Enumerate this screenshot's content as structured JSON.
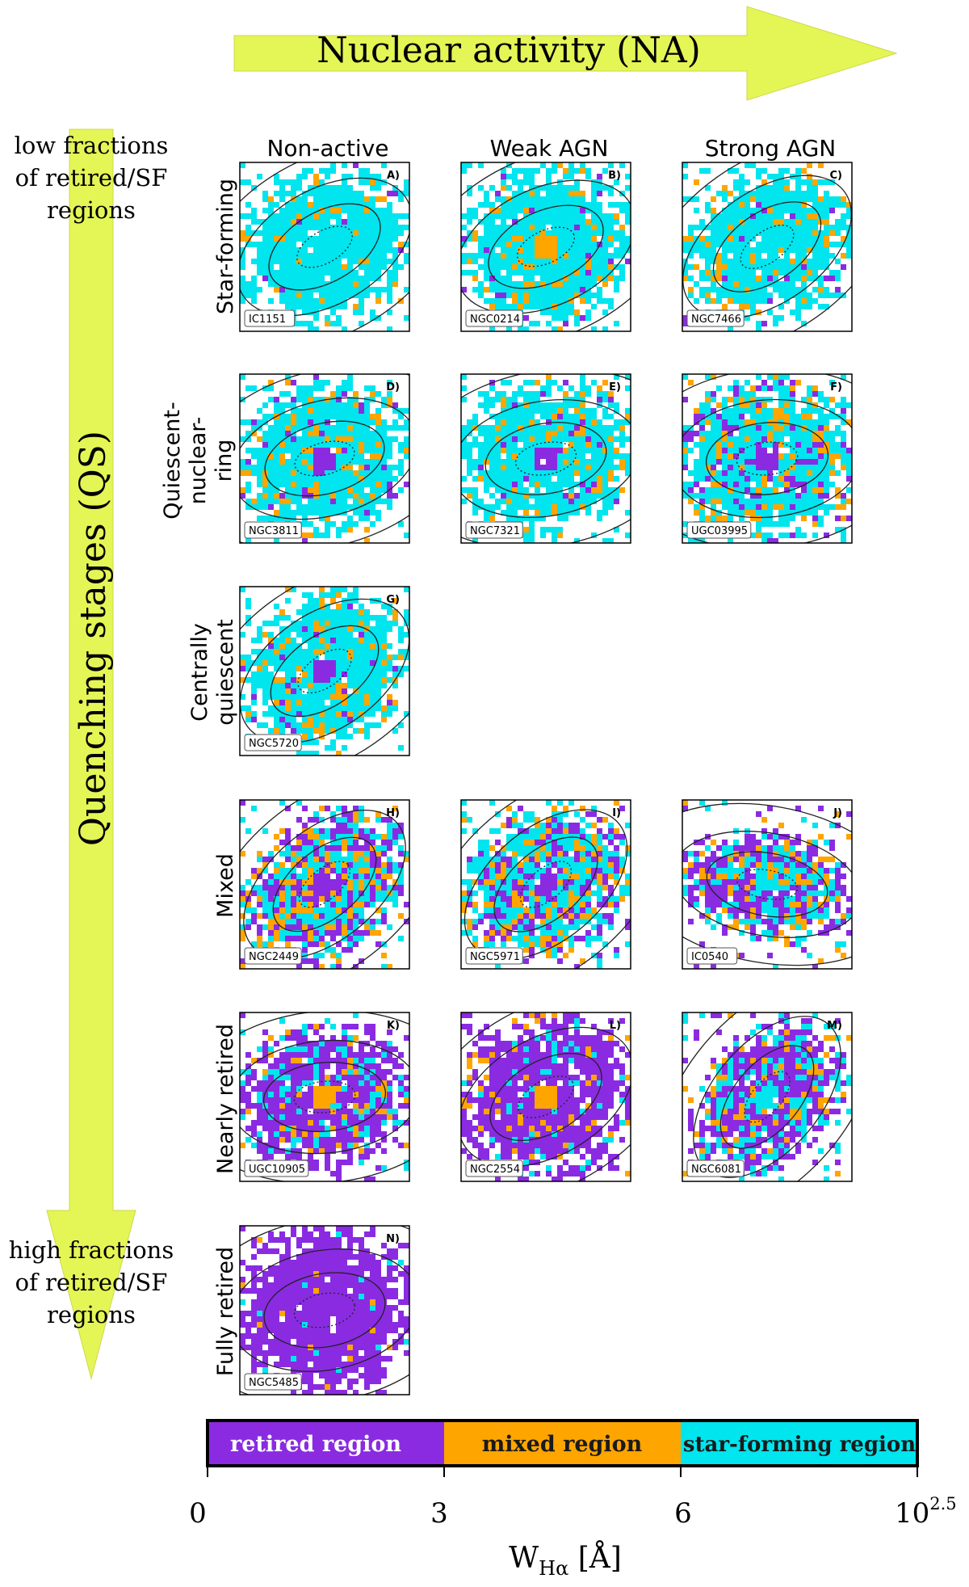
{
  "title_arrow": {
    "label": "Nuclear activity (NA)",
    "color": "#e4f556"
  },
  "vertical_arrow": {
    "label": "Quenching stages (QS)",
    "top_note": [
      "low fractions",
      "of  retired/SF",
      "regions"
    ],
    "bottom_note": [
      "high fractions",
      "of  retired/SF",
      "regions"
    ],
    "color": "#e4f556"
  },
  "columns": [
    "Non-active",
    "Weak AGN",
    "Strong AGN"
  ],
  "rows": [
    [
      "Star-forming"
    ],
    [
      "Quiescent-",
      "nuclear-",
      "ring"
    ],
    [
      "Centrally",
      "quiescent"
    ],
    [
      "Mixed"
    ],
    [
      "Nearly retired"
    ],
    [
      "Fully retired"
    ]
  ],
  "colors": {
    "retired": "#8a2be2",
    "mixed": "#ffa500",
    "starforming": "#00e5ee"
  },
  "panels": [
    {
      "letter": "A)",
      "galaxy": "IC1151",
      "row": 0,
      "col": 0,
      "mix": [
        0.02,
        0.06,
        0.92
      ],
      "core": "sf",
      "angle": -30,
      "spread": 0.85
    },
    {
      "letter": "B)",
      "galaxy": "NGC0214",
      "row": 0,
      "col": 1,
      "mix": [
        0.03,
        0.1,
        0.87
      ],
      "core": "mixed",
      "angle": -25,
      "spread": 0.9
    },
    {
      "letter": "C)",
      "galaxy": "NGC7466",
      "row": 0,
      "col": 2,
      "mix": [
        0.03,
        0.12,
        0.85
      ],
      "core": "sf",
      "angle": -35,
      "spread": 0.8
    },
    {
      "letter": "D)",
      "galaxy": "NGC3811",
      "row": 1,
      "col": 0,
      "mix": [
        0.05,
        0.12,
        0.83
      ],
      "core": "retired",
      "angle": -15,
      "spread": 0.85
    },
    {
      "letter": "E)",
      "galaxy": "NGC7321",
      "row": 1,
      "col": 1,
      "mix": [
        0.04,
        0.1,
        0.86
      ],
      "core": "retired",
      "angle": -10,
      "spread": 0.85
    },
    {
      "letter": "F)",
      "galaxy": "UGC03995",
      "row": 1,
      "col": 2,
      "mix": [
        0.15,
        0.22,
        0.63
      ],
      "core": "retired",
      "angle": -5,
      "spread": 0.9
    },
    {
      "letter": "G)",
      "galaxy": "NGC5720",
      "row": 2,
      "col": 0,
      "mix": [
        0.05,
        0.15,
        0.8
      ],
      "core": "retired",
      "angle": -35,
      "spread": 0.85
    },
    {
      "letter": "H)",
      "galaxy": "NGC2449",
      "row": 3,
      "col": 0,
      "mix": [
        0.35,
        0.25,
        0.4
      ],
      "core": "retired",
      "angle": -40,
      "spread": 0.75
    },
    {
      "letter": "I)",
      "galaxy": "NGC5971",
      "row": 3,
      "col": 1,
      "mix": [
        0.25,
        0.2,
        0.55
      ],
      "core": "retired",
      "angle": -40,
      "spread": 0.8
    },
    {
      "letter": "J)",
      "galaxy": "IC0540",
      "row": 3,
      "col": 2,
      "mix": [
        0.45,
        0.2,
        0.35
      ],
      "core": "sf",
      "angle": 10,
      "spread": 0.6
    },
    {
      "letter": "K)",
      "galaxy": "UGC10905",
      "row": 4,
      "col": 0,
      "mix": [
        0.7,
        0.1,
        0.2
      ],
      "core": "mixed",
      "angle": -5,
      "spread": 0.8
    },
    {
      "letter": "L)",
      "galaxy": "NGC2554",
      "row": 4,
      "col": 1,
      "mix": [
        0.8,
        0.1,
        0.1
      ],
      "core": "mixed",
      "angle": -30,
      "spread": 0.9
    },
    {
      "letter": "M)",
      "galaxy": "NGC6081",
      "row": 4,
      "col": 2,
      "mix": [
        0.55,
        0.15,
        0.3
      ],
      "core": "sf",
      "angle": -50,
      "spread": 0.7
    },
    {
      "letter": "N)",
      "galaxy": "NGC5485",
      "row": 5,
      "col": 0,
      "mix": [
        0.95,
        0.03,
        0.02
      ],
      "core": "retired",
      "angle": -10,
      "spread": 0.95
    }
  ],
  "legend": {
    "segments": [
      {
        "label": "retired region",
        "color": "#8a2be2",
        "text_color": "#ffffff"
      },
      {
        "label": "mixed region",
        "color": "#ffa500",
        "text_color": "#1a1a1a"
      },
      {
        "label": "star-forming region",
        "color": "#00e5ee",
        "text_color": "#1a1a1a"
      }
    ],
    "ticks": [
      "0",
      "3",
      "6",
      "10"
    ],
    "tick_superscript": "2.5",
    "axis_label_main": "W",
    "axis_label_sub": "Hα",
    "axis_label_unit": " [Å]"
  }
}
